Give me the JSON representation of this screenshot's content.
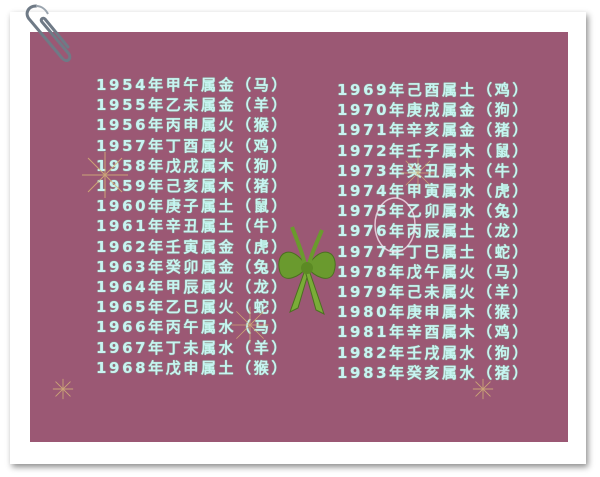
{
  "zodiac_list": {
    "left": [
      "1954年甲午属金（马）",
      "1955年乙未属金（羊）",
      "1956年丙申属火（猴）",
      "1957年丁酉属火（鸡）",
      "1958年戊戌属木（狗）",
      "1959年己亥属木（猪）",
      "1960年庚子属土（鼠）",
      "1961年辛丑属土（牛）",
      "1962年壬寅属金（虎）",
      "1963年癸卯属金（兔）",
      "1964年甲辰属火（龙）",
      "1965年乙巳属火（蛇）",
      "1966年丙午属水（马）",
      "1967年丁未属水（羊）",
      "1968年戊申属土（猴）"
    ],
    "right": [
      "1969年己酉属土（鸡）",
      "1970年庚戌属金（狗）",
      "1971年辛亥属金（猪）",
      "1972年壬子属木（鼠）",
      "1973年癸丑属木（牛）",
      "1974年甲寅属水（虎）",
      "1975年乙卯属水（兔）",
      "1976年丙辰属土（龙）",
      "1977年丁巳属土（蛇）",
      "1978年戊午属火（马）",
      "1979年己未属火（羊）",
      "1980年庚申属木（猴）",
      "1981年辛酉属木（鸡）",
      "1982年壬戌属水（狗）",
      "1983年癸亥属水（猪）"
    ]
  },
  "colors": {
    "panel": "#9b5874",
    "text": "#c9f3f2",
    "bow": "#6a9a2e"
  },
  "decorations": [
    "paperclip-icon",
    "bow-icon",
    "snowflake-icon"
  ]
}
